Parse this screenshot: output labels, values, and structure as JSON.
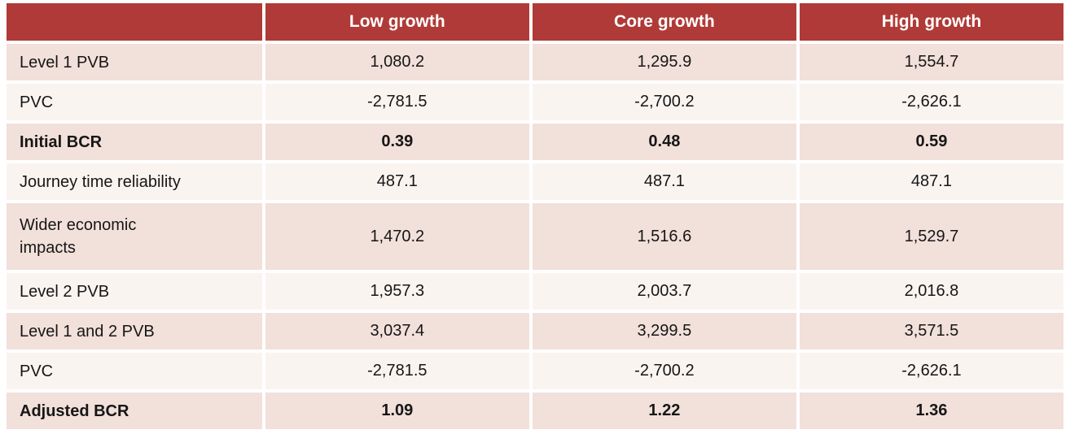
{
  "chart_data": {
    "type": "table",
    "title": "",
    "columns": [
      "",
      "Low growth",
      "Core growth",
      "High growth"
    ],
    "rows": [
      {
        "label": "Level 1 PVB",
        "values": [
          1080.2,
          1295.9,
          1554.7
        ]
      },
      {
        "label": "PVC",
        "values": [
          -2781.5,
          -2700.2,
          -2626.1
        ]
      },
      {
        "label": "Initial BCR",
        "values": [
          0.39,
          0.48,
          0.59
        ]
      },
      {
        "label": "Journey time reliability",
        "values": [
          487.1,
          487.1,
          487.1
        ]
      },
      {
        "label": "Wider economic impacts",
        "values": [
          1470.2,
          1516.6,
          1529.7
        ]
      },
      {
        "label": "Level 2 PVB",
        "values": [
          1957.3,
          2003.7,
          2016.8
        ]
      },
      {
        "label": "Level 1 and 2 PVB",
        "values": [
          3037.4,
          3299.5,
          3571.5
        ]
      },
      {
        "label": "PVC",
        "values": [
          -2781.5,
          -2700.2,
          -2626.1
        ]
      },
      {
        "label": "Adjusted BCR",
        "values": [
          1.09,
          1.22,
          1.36
        ]
      }
    ]
  },
  "table": {
    "columns": [
      "",
      "Low growth",
      "Core growth",
      "High growth"
    ],
    "rows": [
      {
        "label": "Level 1 PVB",
        "values": [
          "1,080.2",
          "1,295.9",
          "1,554.7"
        ]
      },
      {
        "label": "PVC",
        "values": [
          "-2,781.5",
          "-2,700.2",
          "-2,626.1"
        ]
      },
      {
        "label": "Initial BCR",
        "values": [
          "0.39",
          "0.48",
          "0.59"
        ]
      },
      {
        "label": "Journey time reliability",
        "values": [
          "487.1",
          "487.1",
          "487.1"
        ]
      },
      {
        "label": "Wider economic\nimpacts",
        "values": [
          "1,470.2",
          "1,516.6",
          "1,529.7"
        ]
      },
      {
        "label": "Level 2 PVB",
        "values": [
          "1,957.3",
          "2,003.7",
          "2,016.8"
        ]
      },
      {
        "label": "Level 1 and 2 PVB",
        "values": [
          "3,037.4",
          "3,299.5",
          "3,571.5"
        ]
      },
      {
        "label": "PVC",
        "values": [
          "-2,781.5",
          "-2,700.2",
          "-2,626.1"
        ]
      },
      {
        "label": "Adjusted BCR",
        "values": [
          "1.09",
          "1.22",
          "1.36"
        ]
      }
    ],
    "colors": {
      "header_bg": "#b03a37",
      "header_text": "#ffffff",
      "row_shaded": "#f2e0da",
      "row_light": "#faf4f1",
      "text": "#161616",
      "gap": "#ffffff"
    }
  }
}
